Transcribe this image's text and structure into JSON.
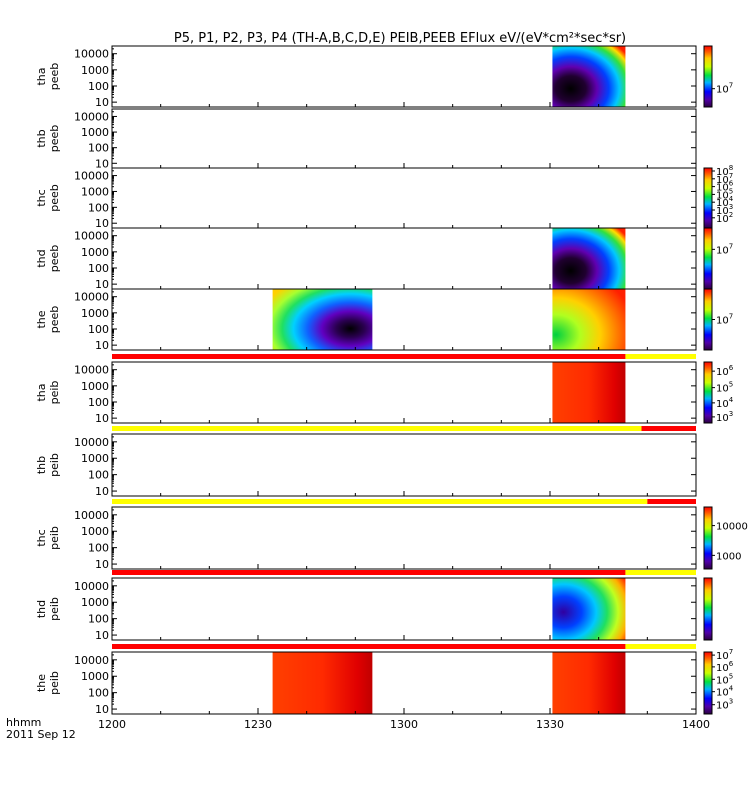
{
  "chart_data": {
    "type": "heatmap",
    "title": "P5, P1, P2, P3, P4 (TH-A,B,C,D,E) PEIB,PEEB EFlux eV/(eV*cm²*sec*sr)",
    "x_ticks": [
      "1200",
      "1230",
      "1300",
      "1330",
      "1400"
    ],
    "x_tick_times_min": [
      0,
      30,
      60,
      90,
      120
    ],
    "time_label_top": "hhmm",
    "time_label_bottom": "2011 Sep 12",
    "y_ticks": [
      "10000",
      "1000",
      "100",
      "10"
    ],
    "y_tick_values": [
      10000,
      1000,
      100,
      10
    ],
    "y_range_eV": [
      5,
      30000
    ],
    "y_scale": "log",
    "colorbar_scale": "log",
    "colors": {
      "red": "#ff0000",
      "yellow": "#ffff00",
      "background": "#ffffff"
    },
    "panels": [
      {
        "line1": "tha",
        "line2": "peeb",
        "colorbar_labels": [
          {
            "text": "10",
            "sup": "7",
            "frac": 0.7
          }
        ],
        "intervals": [
          {
            "start": 90.5,
            "end": 105.5,
            "kind": "electron_cold"
          }
        ]
      },
      {
        "line1": "thb",
        "line2": "peeb",
        "colorbar_labels": [],
        "intervals": []
      },
      {
        "line1": "thc",
        "line2": "peeb",
        "colorbar_labels": [
          {
            "text": "10",
            "sup": "8",
            "frac": 0.05
          },
          {
            "text": "10",
            "sup": "7",
            "frac": 0.18
          },
          {
            "text": "10",
            "sup": "6",
            "frac": 0.31
          },
          {
            "text": "10",
            "sup": "5",
            "frac": 0.44
          },
          {
            "text": "10",
            "sup": "4",
            "frac": 0.57
          },
          {
            "text": "10",
            "sup": "3",
            "frac": 0.7
          },
          {
            "text": "10",
            "sup": "2",
            "frac": 0.83
          }
        ],
        "intervals": []
      },
      {
        "line1": "thd",
        "line2": "peeb",
        "colorbar_labels": [
          {
            "text": "10",
            "sup": "7",
            "frac": 0.35
          }
        ],
        "intervals": [
          {
            "start": 90.5,
            "end": 105.5,
            "kind": "electron_cold"
          }
        ]
      },
      {
        "line1": "the",
        "line2": "peeb",
        "colorbar_labels": [
          {
            "text": "10",
            "sup": "7",
            "frac": 0.5
          }
        ],
        "intervals": [
          {
            "start": 33,
            "end": 53.5,
            "kind": "electron_warm"
          },
          {
            "start": 90.5,
            "end": 105.5,
            "kind": "electron_hot"
          }
        ]
      },
      {
        "line1": "tha",
        "line2": "peib",
        "colorbar_labels": [
          {
            "text": "10",
            "sup": "6",
            "frac": 0.15
          },
          {
            "text": "10",
            "sup": "5",
            "frac": 0.42
          },
          {
            "text": "10",
            "sup": "4",
            "frac": 0.67
          },
          {
            "text": "10",
            "sup": "3",
            "frac": 0.9
          }
        ],
        "intervals": [
          {
            "start": 90.5,
            "end": 105.5,
            "kind": "ion_hot"
          }
        ],
        "mode_bar": [
          {
            "start": 0,
            "end": 105.5,
            "color": "red"
          },
          {
            "start": 105.5,
            "end": 120,
            "color": "yellow"
          }
        ]
      },
      {
        "line1": "thb",
        "line2": "peib",
        "colorbar_labels": [],
        "intervals": [],
        "mode_bar": [
          {
            "start": 0,
            "end": 108.8,
            "color": "yellow"
          },
          {
            "start": 108.8,
            "end": 120,
            "color": "red"
          }
        ]
      },
      {
        "line1": "thc",
        "line2": "peib",
        "colorbar_labels": [
          {
            "text": "10000",
            "sup": "",
            "frac": 0.3
          },
          {
            "text": "1000",
            "sup": "",
            "frac": 0.78
          }
        ],
        "intervals": [],
        "mode_bar": [
          {
            "start": 0,
            "end": 110,
            "color": "yellow"
          },
          {
            "start": 110,
            "end": 120,
            "color": "red"
          }
        ]
      },
      {
        "line1": "thd",
        "line2": "peib",
        "colorbar_labels": [],
        "intervals": [
          {
            "start": 90.5,
            "end": 105.5,
            "kind": "ion_cool"
          }
        ],
        "mode_bar": [
          {
            "start": 0,
            "end": 105.5,
            "color": "red"
          },
          {
            "start": 105.5,
            "end": 120,
            "color": "yellow"
          }
        ]
      },
      {
        "line1": "the",
        "line2": "peib",
        "colorbar_labels": [
          {
            "text": "10",
            "sup": "7",
            "frac": 0.05
          },
          {
            "text": "10",
            "sup": "6",
            "frac": 0.24
          },
          {
            "text": "10",
            "sup": "5",
            "frac": 0.44
          },
          {
            "text": "10",
            "sup": "4",
            "frac": 0.64
          },
          {
            "text": "10",
            "sup": "3",
            "frac": 0.85
          }
        ],
        "intervals": [
          {
            "start": 33,
            "end": 53.5,
            "kind": "ion_hot"
          },
          {
            "start": 90.5,
            "end": 105.5,
            "kind": "ion_hot"
          }
        ],
        "mode_bar": [
          {
            "start": 0,
            "end": 105.5,
            "color": "red"
          },
          {
            "start": 105.5,
            "end": 120,
            "color": "yellow"
          }
        ]
      }
    ]
  }
}
